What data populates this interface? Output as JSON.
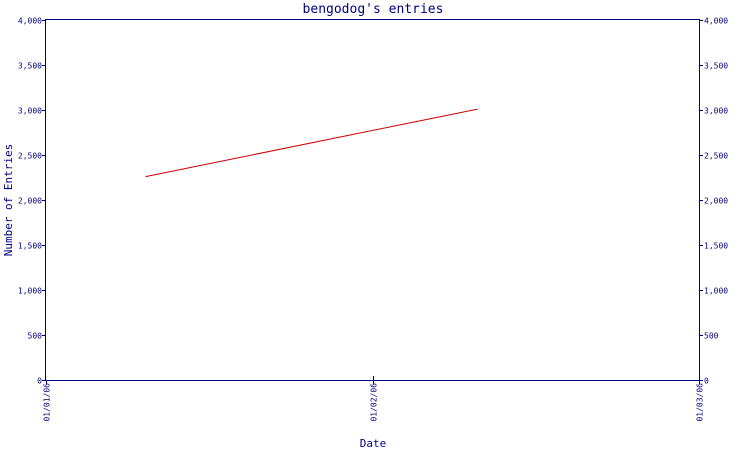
{
  "chart_data": {
    "type": "line",
    "title": "bengodog's entries",
    "xlabel": "Date",
    "ylabel": "Number of Entries",
    "x_ticks": [
      "01/01/06",
      "01/02/06",
      "01/03/06"
    ],
    "y_ticks": [
      0,
      500,
      1000,
      1500,
      2000,
      2500,
      3000,
      3500,
      4000
    ],
    "y_tick_labels": [
      "0",
      "500",
      "1,000",
      "1,500",
      "2,000",
      "2,500",
      "3,000",
      "3,500",
      "4,000"
    ],
    "xlim": [
      "2006-01-01",
      "2006-03-01"
    ],
    "ylim": [
      0,
      4000
    ],
    "grid": false,
    "colors": {
      "axis": "#00007f",
      "series": "#cc0000",
      "background": "#ffffff"
    },
    "series": [
      {
        "x": [
          "2006-01-10",
          "2006-02-09"
        ],
        "y": [
          2260,
          3010
        ]
      }
    ]
  }
}
